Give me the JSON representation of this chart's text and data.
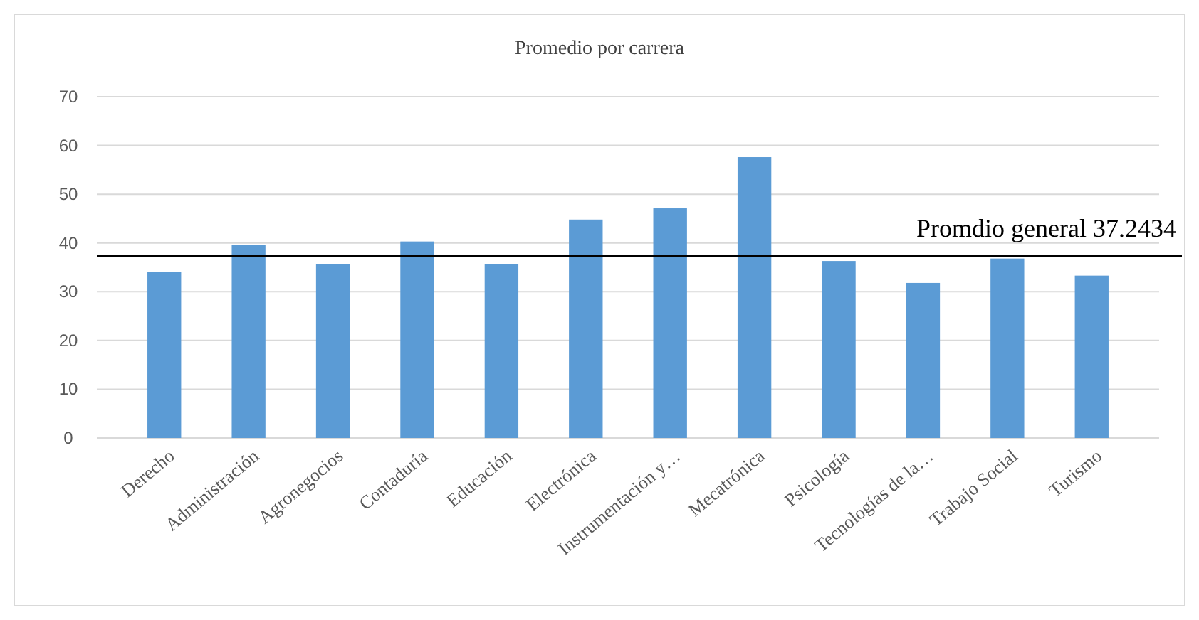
{
  "chart_data": {
    "type": "bar",
    "title": "Promedio  por carrera",
    "categories": [
      "Derecho",
      "Administración",
      "Agronegocios",
      "Contaduría",
      "Educación",
      "Electrónica",
      "Instrumentación y…",
      "Mecatrónica",
      "Psicología",
      "Tecnologías de la…",
      "Trabajo Social",
      "Turismo"
    ],
    "values": [
      34.1,
      39.6,
      35.6,
      40.3,
      35.6,
      44.8,
      47.1,
      57.6,
      36.3,
      31.8,
      36.8,
      33.3
    ],
    "color": "#5b9bd5",
    "ylim": [
      0,
      70
    ],
    "yticks": [
      0,
      10,
      20,
      30,
      40,
      50,
      60,
      70
    ],
    "grid": "y",
    "ref_lines": [
      {
        "axis": "y",
        "value": 37.2434,
        "label": "Promdio general  37.2434",
        "color": "#000000"
      }
    ]
  }
}
